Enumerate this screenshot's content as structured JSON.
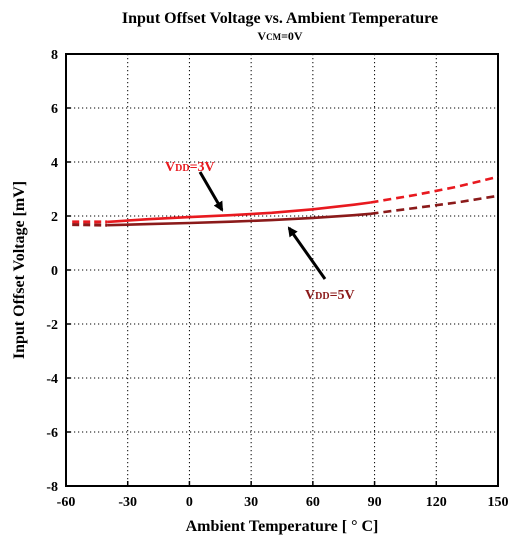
{
  "chart_data": {
    "type": "line",
    "title": "Input Offset Voltage vs. Ambient Temperature",
    "subtitle_main": "V",
    "subtitle_sub": "CM",
    "subtitle_rest": "=0V",
    "xlabel": "Ambient Temperature [ ° C]",
    "ylabel": "Input Offset Voltage [mV]",
    "xlim": [
      -60,
      150
    ],
    "ylim": [
      -8,
      8
    ],
    "xticks": [
      "-60",
      "-30",
      "0",
      "30",
      "60",
      "90",
      "120",
      "150"
    ],
    "yticks": [
      "-8",
      "-6",
      "-4",
      "-2",
      "0",
      "2",
      "4",
      "6",
      "8"
    ],
    "grid": true,
    "series": [
      {
        "name": "VDD=3V",
        "color": "#e8191f",
        "solid": {
          "x": [
            -40,
            -20,
            0,
            20,
            40,
            60,
            80,
            88
          ],
          "y": [
            1.78,
            1.88,
            1.96,
            2.03,
            2.12,
            2.25,
            2.42,
            2.5
          ]
        },
        "dashed_right": {
          "x": [
            88,
            110,
            130,
            150
          ],
          "y": [
            2.5,
            2.78,
            3.08,
            3.45
          ]
        },
        "dashed_left": {
          "x": [
            -57,
            -40
          ],
          "y": [
            1.78,
            1.78
          ]
        }
      },
      {
        "name": "VDD=5V",
        "color": "#8b1a1a",
        "solid": {
          "x": [
            -40,
            -20,
            0,
            20,
            40,
            60,
            80,
            88
          ],
          "y": [
            1.66,
            1.7,
            1.74,
            1.79,
            1.85,
            1.93,
            2.03,
            2.08
          ]
        },
        "dashed_right": {
          "x": [
            88,
            110,
            130,
            150
          ],
          "y": [
            2.08,
            2.3,
            2.5,
            2.75
          ]
        },
        "dashed_left": {
          "x": [
            -57,
            -40
          ],
          "y": [
            1.68,
            1.66
          ]
        }
      }
    ],
    "annotations": [
      {
        "label_main": "V",
        "label_sub": "DD",
        "label_rest": "=3V",
        "series": 0
      },
      {
        "label_main": "V",
        "label_sub": "DD",
        "label_rest": "=5V",
        "series": 1
      }
    ]
  }
}
